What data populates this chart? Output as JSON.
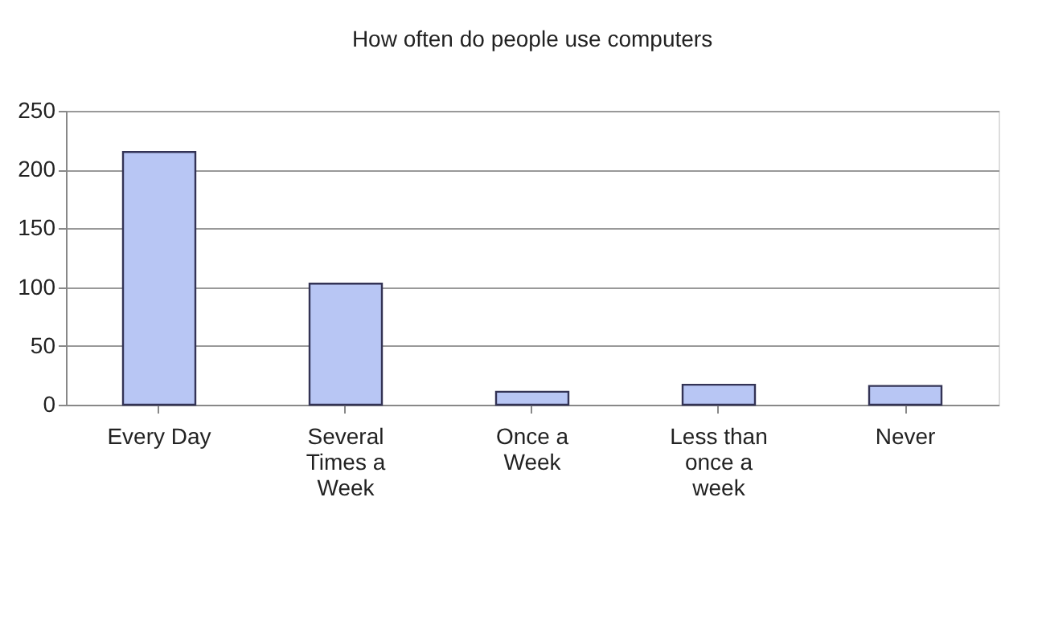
{
  "chart_data": {
    "type": "bar",
    "title": "How often do people use computers",
    "categories": [
      "Every Day",
      "Several Times a Week",
      "Once a Week",
      "Less than once a week",
      "Never"
    ],
    "values": [
      215,
      103,
      11,
      17,
      16
    ],
    "color": "#b8c6f4",
    "ylim": [
      0,
      250
    ],
    "yticks": [
      0,
      50,
      100,
      150,
      200,
      250
    ],
    "grid": "y",
    "legend": false
  }
}
